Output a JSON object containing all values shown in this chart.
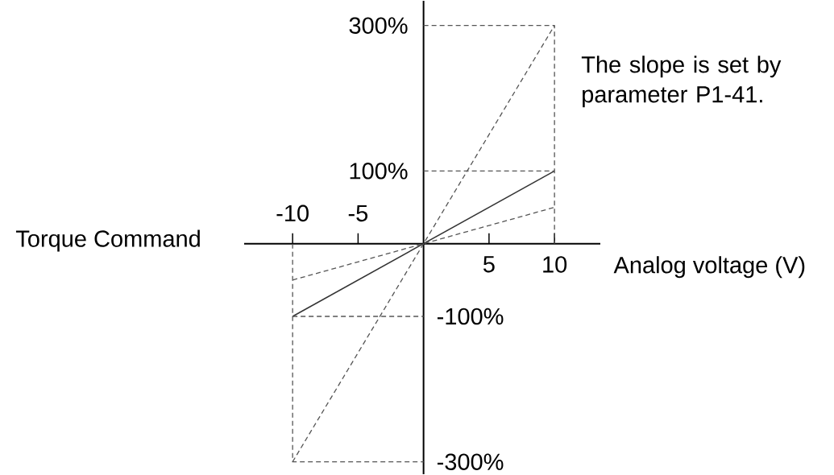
{
  "chart_data": {
    "type": "line",
    "xlabel": "Analog voltage (V)",
    "annotations": [
      "Torque Command",
      "The slope is set by parameter P1-41."
    ],
    "xlim": [
      -13.7,
      13.5
    ],
    "xticks": [
      5,
      10
    ],
    "x2lim": [
      -13.7,
      13.5
    ],
    "x2ticks": [
      -10,
      -5
    ],
    "ylim": [
      -317,
      334
    ],
    "yticks": [
      {
        "value": 100,
        "label": "100%"
      },
      {
        "value": 300,
        "label": "300%"
      }
    ],
    "y2lim": [
      -317,
      334
    ],
    "y2ticks": [
      {
        "value": -300,
        "label": "-300%"
      },
      {
        "value": -100,
        "label": "-100%"
      }
    ],
    "marker": "none",
    "series": [
      {
        "color": "#333333",
        "line_style": "solid",
        "x": [
          -10,
          10
        ],
        "values": [
          -100,
          100
        ]
      },
      {
        "color": "#555555",
        "line_style": "dashed",
        "x": [
          -10,
          10
        ],
        "values": [
          -300,
          300
        ]
      },
      {
        "color": "#555555",
        "line_style": "dashed",
        "x": [
          -10,
          10
        ],
        "values": [
          -50,
          50
        ]
      },
      {
        "color": "#555555",
        "line_style": "dashed",
        "x": [
          0,
          10,
          10
        ],
        "values": [
          300,
          300,
          0
        ]
      },
      {
        "color": "#555555",
        "line_style": "dashed",
        "x": [
          0,
          10
        ],
        "values": [
          100,
          100
        ]
      },
      {
        "color": "#555555",
        "line_style": "dashed",
        "x": [
          -10,
          -10,
          0
        ],
        "values": [
          0,
          -300,
          -300
        ]
      },
      {
        "color": "#555555",
        "line_style": "dashed",
        "x": [
          -10,
          0
        ],
        "values": [
          -100,
          -100
        ]
      }
    ]
  }
}
